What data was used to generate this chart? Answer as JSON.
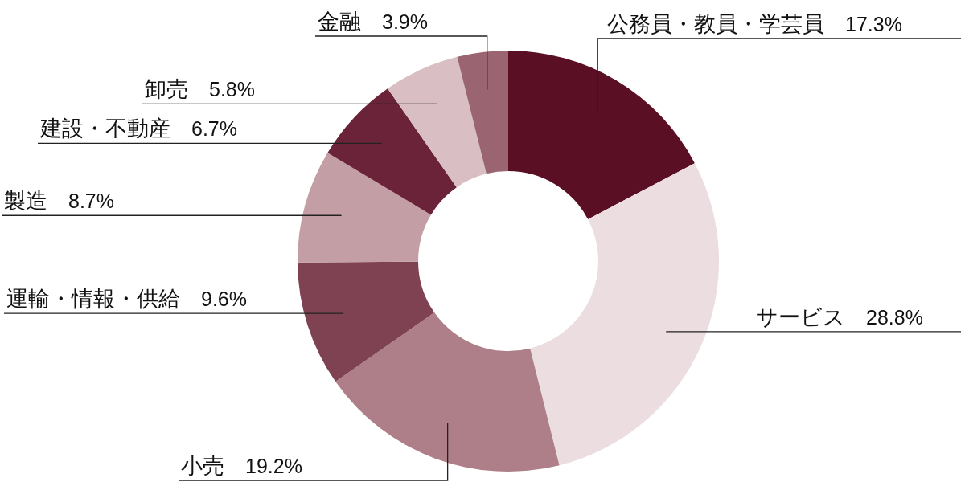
{
  "chart_data": {
    "type": "donut",
    "categories": [
      "公務員・教員・学芸員",
      "サービス",
      "小売",
      "運輸・情報・供給",
      "製造",
      "建設・不動産",
      "卸売",
      "金融"
    ],
    "values": [
      17.3,
      28.8,
      19.2,
      9.6,
      8.7,
      6.7,
      5.8,
      3.9
    ],
    "value_labels": [
      "17.3%",
      "28.8%",
      "19.2%",
      "9.6%",
      "8.7%",
      "6.7%",
      "5.8%",
      "3.9%"
    ],
    "colors": [
      "#5a0f25",
      "#ebdde0",
      "#ae7f88",
      "#7f4252",
      "#c49ea5",
      "#6a2339",
      "#d9bfc4",
      "#9a6470"
    ]
  }
}
